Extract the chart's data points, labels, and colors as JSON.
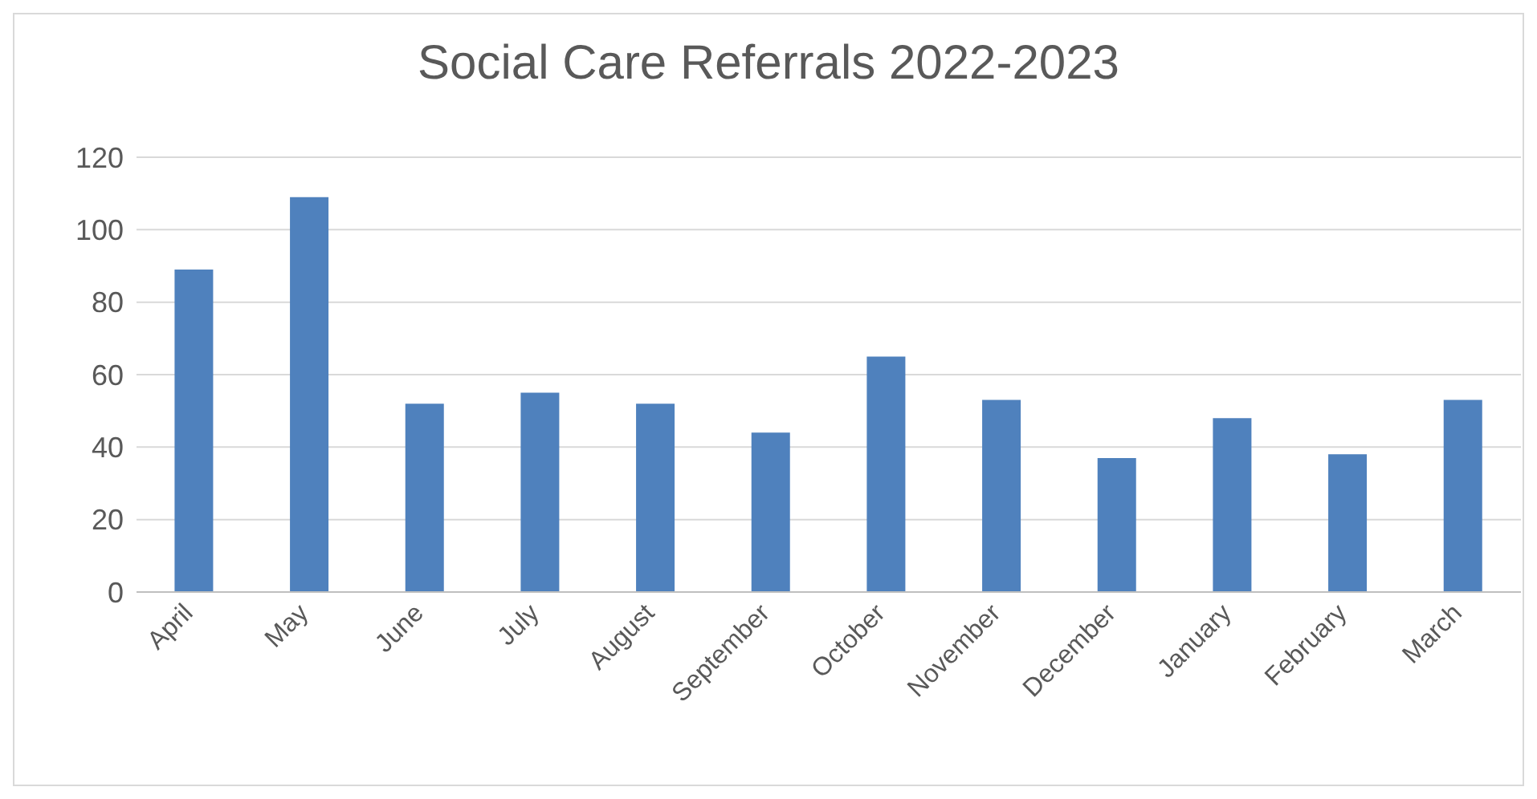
{
  "chart_data": {
    "type": "bar",
    "title": "Social Care Referrals 2022-2023",
    "categories": [
      "April",
      "May",
      "June",
      "July",
      "August",
      "September",
      "October",
      "November",
      "December",
      "January",
      "February",
      "March"
    ],
    "values": [
      89,
      109,
      52,
      55,
      52,
      44,
      65,
      53,
      37,
      48,
      38,
      53
    ],
    "color": "#4f81bd",
    "ylim": [
      0,
      120
    ],
    "yticks": [
      0,
      20,
      40,
      60,
      80,
      100,
      120
    ],
    "grid": "y"
  }
}
